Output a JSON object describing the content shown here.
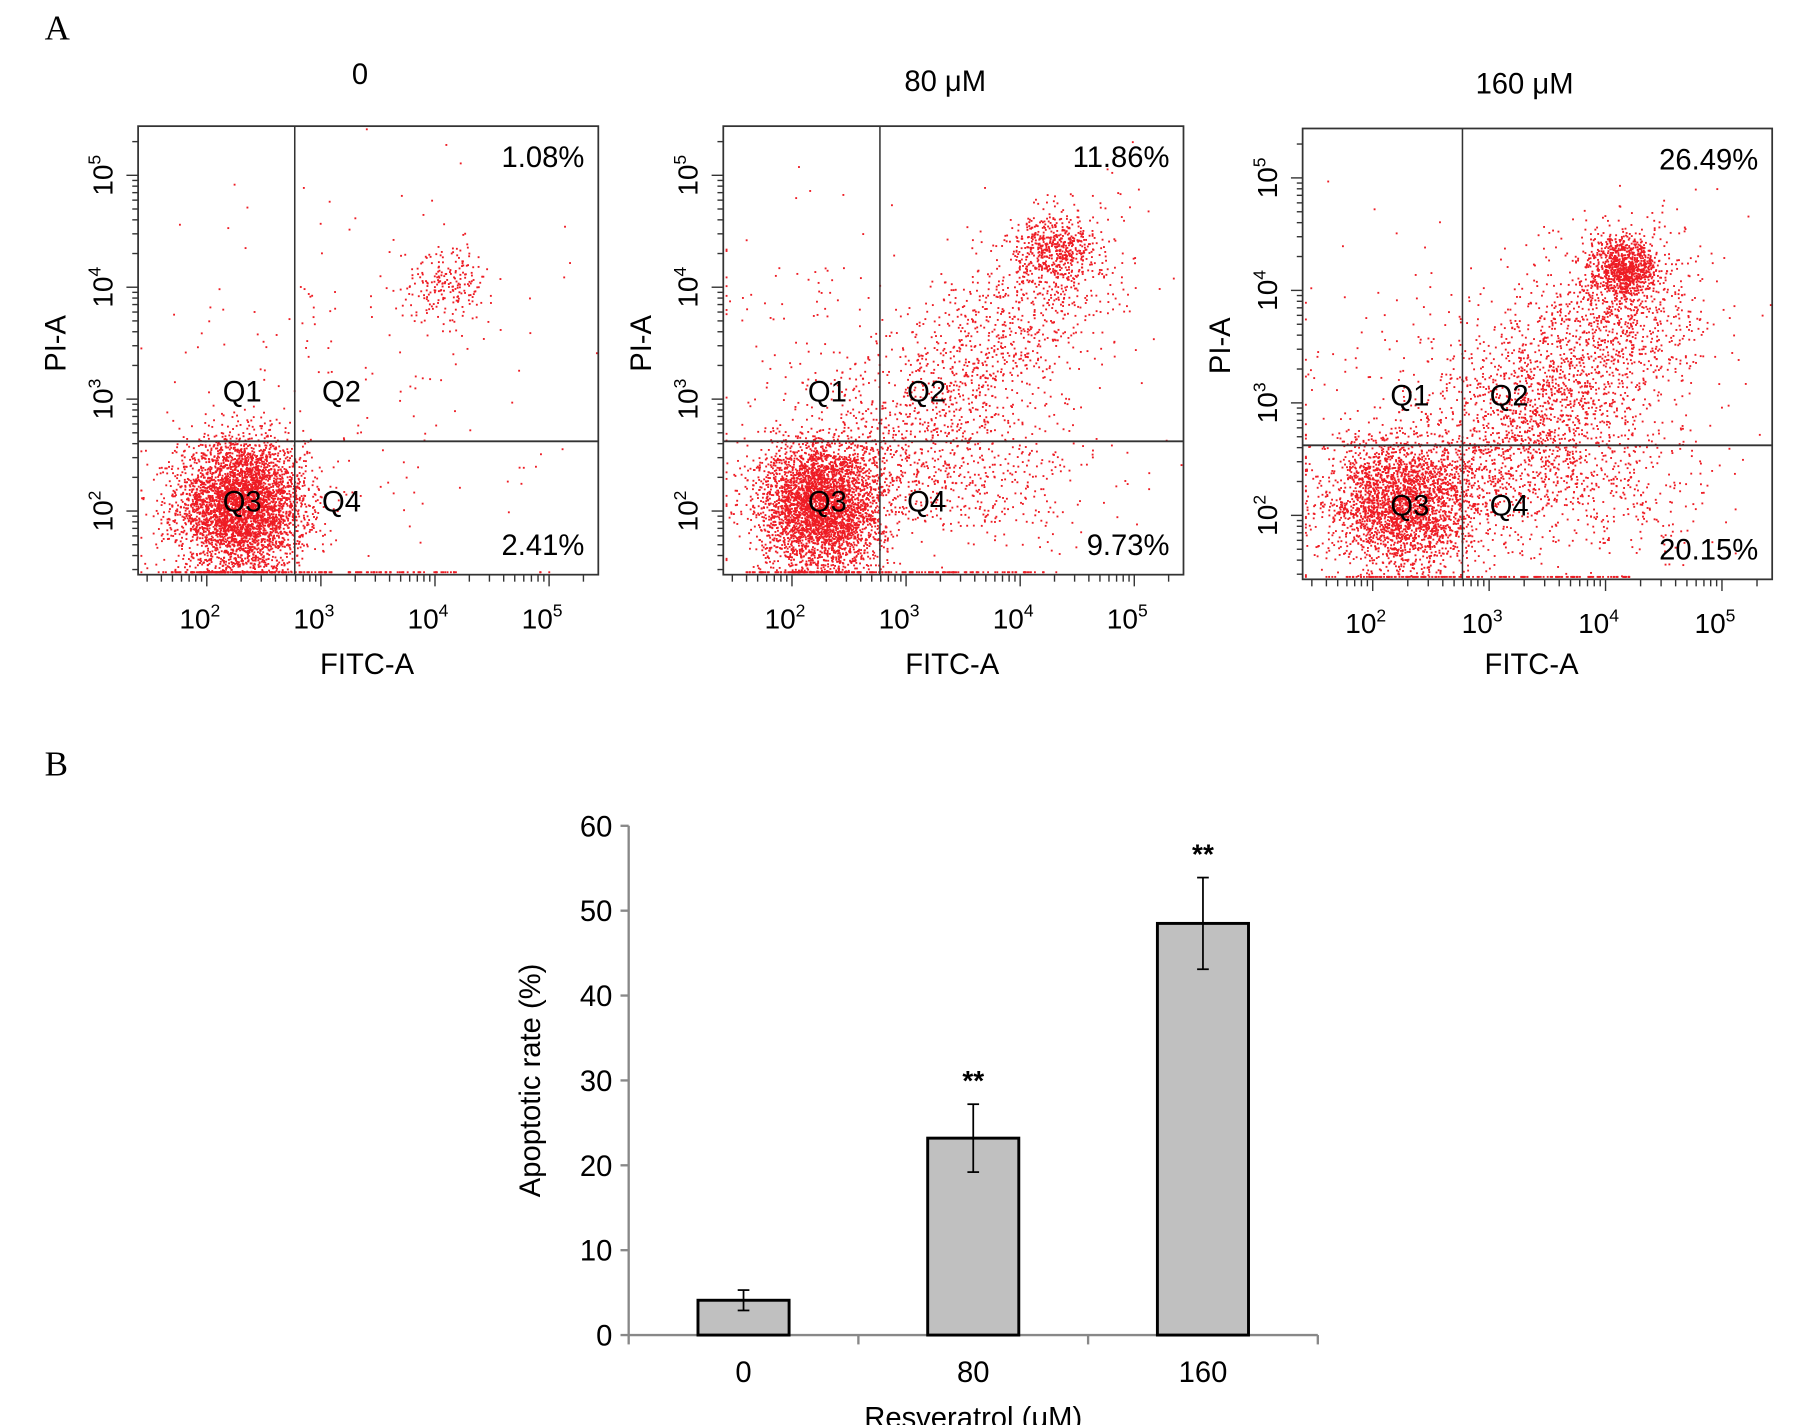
{
  "chart_data": [
    {
      "type": "scatter",
      "panel_label": "A",
      "xlabel": "FITC-A",
      "ylabel": "PI-A",
      "xscale": "log",
      "yscale": "log",
      "xlim": [
        25,
        270000
      ],
      "ylim": [
        27,
        275000
      ],
      "x_ticks": [
        "10^2",
        "10^3",
        "10^4",
        "10^5"
      ],
      "y_ticks": [
        "10^2",
        "10^3",
        "10^4",
        "10^5"
      ],
      "gate": {
        "fitc": 590,
        "pi": 420
      },
      "quadrant_labels": [
        "Q1",
        "Q2",
        "Q3",
        "Q4"
      ],
      "point_color": "#ee1c24",
      "panels": [
        {
          "title": "0",
          "q2_percent": "1.08%",
          "q4_percent": "2.41%"
        },
        {
          "title": "80 μM",
          "q2_percent": "11.86%",
          "q4_percent": "9.73%"
        },
        {
          "title": "160 μM",
          "q2_percent": "26.49%",
          "q4_percent": "20.15%"
        }
      ]
    },
    {
      "type": "bar",
      "panel_label": "B",
      "categories": [
        "0",
        "80",
        "160"
      ],
      "values": [
        4.1,
        23.2,
        48.5
      ],
      "errors": [
        1.2,
        4.0,
        5.4
      ],
      "annotations": [
        "",
        "**",
        "**"
      ],
      "xlabel": "Resveratrol (μM)",
      "ylabel": "Apoptotic rate (%)",
      "ylim": [
        0,
        60
      ],
      "y_ticks": [
        "0",
        "10",
        "20",
        "30",
        "40",
        "50",
        "60"
      ],
      "bar_color": "#c0c0c0",
      "grid": false
    }
  ]
}
